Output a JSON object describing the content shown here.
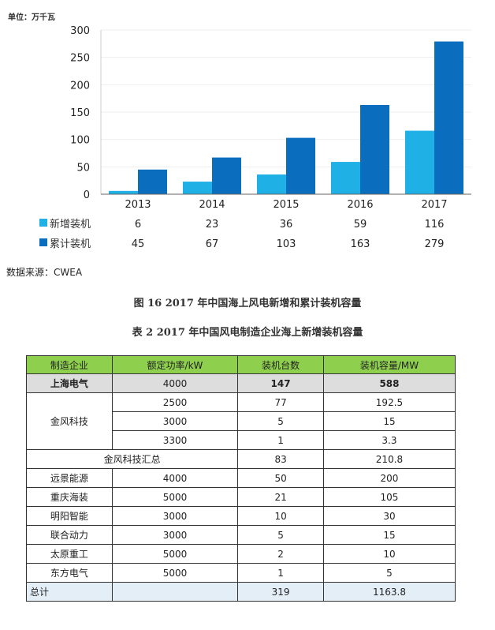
{
  "chart_data": {
    "type": "bar",
    "unit_label": "单位：万千瓦",
    "categories": [
      "2013",
      "2014",
      "2015",
      "2016",
      "2017"
    ],
    "series": [
      {
        "name": "新增装机",
        "values": [
          6,
          23,
          36,
          59,
          116
        ],
        "color": "#1fb0e6"
      },
      {
        "name": "累计装机",
        "values": [
          45,
          67,
          103,
          163,
          279
        ],
        "color": "#0b6dbd"
      }
    ],
    "ylim": [
      0,
      300
    ],
    "yticks": [
      0,
      50,
      100,
      150,
      200,
      250,
      300
    ],
    "grid": true,
    "legend": "data-table-below"
  },
  "source": "数据来源：CWEA",
  "figure_caption": "图 16   2017 年中国海上风电新增和累计装机容量",
  "table_caption": "表 2   2017 年中国风电制造企业海上新增装机容量",
  "table": {
    "headers": [
      "制造企业",
      "额定功率/kW",
      "装机台数",
      "装机容量/MW"
    ],
    "shanghai": [
      "上海电气",
      "4000",
      "147",
      "588"
    ],
    "goldwind": {
      "name": "金风科技",
      "rows": [
        [
          "2500",
          "77",
          "192.5"
        ],
        [
          "3000",
          "5",
          "15"
        ],
        [
          "3300",
          "1",
          "3.3"
        ]
      ]
    },
    "goldwind_total": [
      "金风科技汇总",
      "83",
      "210.8"
    ],
    "rows": [
      [
        "远景能源",
        "4000",
        "50",
        "200"
      ],
      [
        "重庆海装",
        "5000",
        "21",
        "105"
      ],
      [
        "明阳智能",
        "3000",
        "10",
        "30"
      ],
      [
        "联合动力",
        "3000",
        "5",
        "15"
      ],
      [
        "太原重工",
        "5000",
        "2",
        "10"
      ],
      [
        "东方电气",
        "5000",
        "1",
        "5"
      ]
    ],
    "total": [
      "总计",
      "",
      "319",
      "1163.8"
    ]
  }
}
